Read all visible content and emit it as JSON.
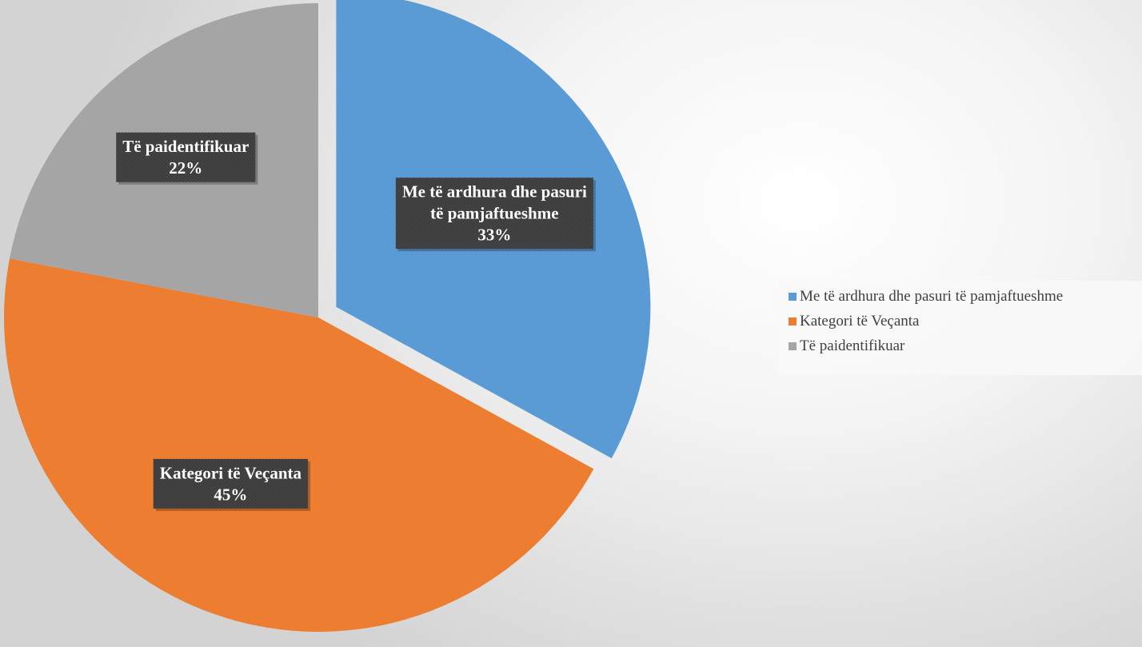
{
  "chart_data": {
    "type": "pie",
    "title": "",
    "slices": [
      {
        "label": "Me të ardhura dhe pasuri të pamjaftueshme",
        "label_lines": [
          "Me të ardhura dhe pasuri",
          "të pamjaftueshme"
        ],
        "value": 33,
        "value_text": "33%",
        "color": "#5b9bd5",
        "exploded": true
      },
      {
        "label": "Kategori të Veçanta",
        "label_lines": [
          "Kategori të Veçanta"
        ],
        "value": 45,
        "value_text": "45%",
        "color": "#ed7d31",
        "exploded": false
      },
      {
        "label": "Të paidentifikuar",
        "label_lines": [
          "Të paidentifikuar"
        ],
        "value": 22,
        "value_text": "22%",
        "color": "#a5a5a5",
        "exploded": false
      }
    ],
    "start_angle": "12 o'clock",
    "direction": "clockwise",
    "legend_position": "right",
    "data_label_style": "dark callout boxes with white bold text"
  },
  "legend": {
    "items": [
      {
        "label": "Me të ardhura dhe pasuri të pamjaftueshme",
        "color": "#5b9bd5"
      },
      {
        "label": "Kategori të Veçanta",
        "color": "#ed7d31"
      },
      {
        "label": "Të paidentifikuar",
        "color": "#a5a5a5"
      }
    ]
  }
}
